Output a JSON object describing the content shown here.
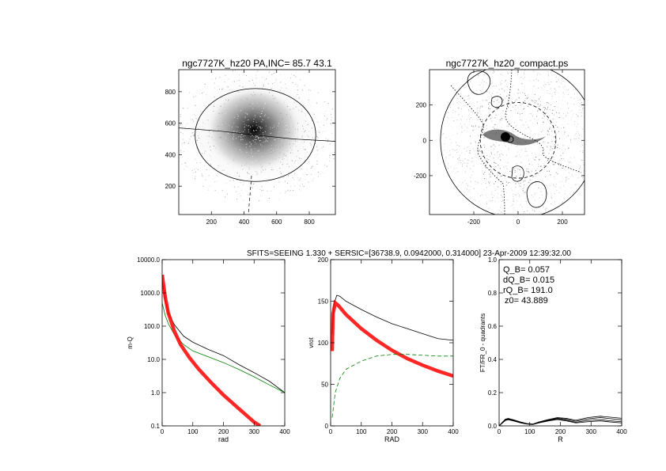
{
  "header": {
    "title_left": "ngc7727K_hz20 PA,INC= 85.7 43.1",
    "title_right": "ngc7727K_hz20_compact.ps",
    "fit_line": "SFITS=SEEING 1.330 + SERSIC=[36738.9, 0.0942000, 0.314000]  23-Apr-2009 12:39:32.00"
  },
  "stats": [
    "Q_B=  0.057",
    "dQ_B=  0.015",
    "rQ_B=  191.0",
    "z0= 43.889"
  ],
  "chart_data": [
    {
      "id": "image-panel",
      "type": "heatmap",
      "title": "ngc7727K_hz20 PA,INC= 85.7 43.1",
      "xlim": [
        0,
        960
      ],
      "ylim": [
        20,
        940
      ],
      "xticks": [
        200,
        400,
        600,
        800
      ],
      "yticks": [
        200,
        400,
        600,
        800
      ],
      "center": [
        470,
        525
      ],
      "ellipse": {
        "cx": 470,
        "cy": 525,
        "rx": 370,
        "ry": 295
      },
      "slit": [
        [
          0,
          570
        ],
        [
          250,
          550
        ],
        [
          470,
          525
        ],
        [
          700,
          500
        ],
        [
          960,
          485
        ]
      ]
    },
    {
      "id": "compact-panel",
      "type": "heatmap",
      "title": "ngc7727K_hz20_compact.ps",
      "xlim": [
        -400,
        300
      ],
      "ylim": [
        -420,
        400
      ],
      "xticks": [
        -200,
        0,
        200
      ],
      "yticks": [
        -200,
        0,
        200
      ],
      "circle_r": 390,
      "dashed_circle_r": 190
    },
    {
      "id": "profile-log",
      "type": "line",
      "xlabel": "rad",
      "ylabel": "m-Q",
      "log_y": true,
      "xlim": [
        0,
        400
      ],
      "ylim": [
        0.1,
        10000
      ],
      "xticks": [
        0,
        100,
        200,
        300,
        400
      ],
      "yticks": [
        0.1,
        1.0,
        10.0,
        100.0,
        1000.0,
        10000.0
      ],
      "ytick_labels": [
        "0.1",
        "1.0",
        "10.0",
        "100.0",
        "1000.0",
        "10000.0"
      ],
      "series": [
        {
          "color": "#000000",
          "points": [
            [
              0,
              2500
            ],
            [
              10,
              600
            ],
            [
              20,
              250
            ],
            [
              40,
              110
            ],
            [
              70,
              50
            ],
            [
              100,
              33
            ],
            [
              150,
              20
            ],
            [
              200,
              13
            ],
            [
              250,
              7
            ],
            [
              300,
              4
            ],
            [
              350,
              2.2
            ],
            [
              400,
              1.0
            ]
          ]
        },
        {
          "color": "#008000",
          "points": [
            [
              0,
              500
            ],
            [
              10,
              210
            ],
            [
              20,
              120
            ],
            [
              40,
              55
            ],
            [
              70,
              28
            ],
            [
              100,
              18
            ],
            [
              150,
              12
            ],
            [
              200,
              8
            ],
            [
              250,
              5
            ],
            [
              300,
              3
            ],
            [
              350,
              1.7
            ],
            [
              400,
              1.0
            ]
          ]
        },
        {
          "color": "#ff0000",
          "points": [
            [
              0,
              3500
            ],
            [
              10,
              750
            ],
            [
              20,
              250
            ],
            [
              40,
              70
            ],
            [
              60,
              28
            ],
            [
              90,
              11
            ],
            [
              120,
              5
            ],
            [
              160,
              2
            ],
            [
              200,
              0.85
            ],
            [
              250,
              0.33
            ],
            [
              300,
              0.13
            ],
            [
              320,
              0.1
            ]
          ]
        }
      ]
    },
    {
      "id": "rotation-curve",
      "type": "line",
      "xlabel": "RAD",
      "ylabel": "vrot",
      "xlim": [
        0,
        400
      ],
      "ylim": [
        0,
        200
      ],
      "xticks": [
        0,
        100,
        200,
        300,
        400
      ],
      "yticks": [
        0,
        50,
        100,
        150,
        200
      ],
      "series": [
        {
          "color": "#000000",
          "points": [
            [
              5,
              110
            ],
            [
              10,
              145
            ],
            [
              20,
              157
            ],
            [
              30,
              156
            ],
            [
              50,
              150
            ],
            [
              100,
              140
            ],
            [
              150,
              131
            ],
            [
              200,
              123
            ],
            [
              250,
              117
            ],
            [
              300,
              111
            ],
            [
              350,
              105
            ],
            [
              400,
              103
            ]
          ]
        },
        {
          "color": "#ff0000",
          "points": [
            [
              5,
              90
            ],
            [
              8,
              135
            ],
            [
              15,
              148
            ],
            [
              25,
              145
            ],
            [
              50,
              134
            ],
            [
              100,
              117
            ],
            [
              150,
              103
            ],
            [
              200,
              91
            ],
            [
              250,
              81
            ],
            [
              300,
              73
            ],
            [
              350,
              66
            ],
            [
              400,
              60
            ]
          ]
        },
        {
          "color": "#008000",
          "dashed": true,
          "points": [
            [
              5,
              10
            ],
            [
              15,
              40
            ],
            [
              30,
              57
            ],
            [
              50,
              68
            ],
            [
              100,
              78
            ],
            [
              150,
              84
            ],
            [
              200,
              86
            ],
            [
              250,
              86
            ],
            [
              300,
              85
            ],
            [
              350,
              84
            ],
            [
              400,
              84
            ]
          ]
        }
      ]
    },
    {
      "id": "fourier-ratio",
      "type": "line",
      "xlabel": "R",
      "ylabel": "FT/FR_0 - quadrants",
      "xlim": [
        0,
        400
      ],
      "ylim": [
        0,
        1.0
      ],
      "xticks": [
        0,
        100,
        200,
        300,
        400
      ],
      "yticks": [
        0,
        0.2,
        0.4,
        0.6,
        0.8,
        1.0
      ],
      "series": [
        {
          "color": "#000000",
          "points": [
            [
              0,
              0
            ],
            [
              10,
              0.02
            ],
            [
              20,
              0.038
            ],
            [
              30,
              0.042
            ],
            [
              50,
              0.032
            ],
            [
              70,
              0.022
            ],
            [
              90,
              0.013
            ],
            [
              110,
              0.01
            ],
            [
              130,
              0.022
            ],
            [
              160,
              0.035
            ],
            [
              190,
              0.046
            ],
            [
              220,
              0.04
            ],
            [
              250,
              0.028
            ],
            [
              290,
              0.042
            ],
            [
              330,
              0.05
            ],
            [
              360,
              0.044
            ],
            [
              400,
              0.036
            ]
          ]
        },
        {
          "color": "#000000",
          "points": [
            [
              0,
              0
            ],
            [
              10,
              0.018
            ],
            [
              20,
              0.035
            ],
            [
              30,
              0.04
            ],
            [
              50,
              0.03
            ],
            [
              70,
              0.02
            ],
            [
              90,
              0.012
            ],
            [
              110,
              0.009
            ],
            [
              130,
              0.02
            ],
            [
              160,
              0.032
            ],
            [
              190,
              0.042
            ],
            [
              220,
              0.034
            ],
            [
              250,
              0.022
            ],
            [
              290,
              0.032
            ],
            [
              330,
              0.038
            ],
            [
              360,
              0.031
            ],
            [
              400,
              0.025
            ]
          ]
        },
        {
          "color": "#000000",
          "points": [
            [
              0,
              0
            ],
            [
              10,
              0.02
            ],
            [
              20,
              0.04
            ],
            [
              30,
              0.045
            ],
            [
              50,
              0.035
            ],
            [
              70,
              0.024
            ],
            [
              90,
              0.014
            ],
            [
              110,
              0.011
            ],
            [
              130,
              0.024
            ],
            [
              160,
              0.038
            ],
            [
              190,
              0.05
            ],
            [
              220,
              0.045
            ],
            [
              250,
              0.034
            ],
            [
              290,
              0.05
            ],
            [
              330,
              0.058
            ],
            [
              360,
              0.053
            ],
            [
              400,
              0.046
            ]
          ]
        },
        {
          "color": "#000000",
          "points": [
            [
              0,
              0
            ],
            [
              10,
              0.016
            ],
            [
              20,
              0.032
            ],
            [
              30,
              0.037
            ],
            [
              50,
              0.028
            ],
            [
              70,
              0.018
            ],
            [
              90,
              0.011
            ],
            [
              110,
              0.008
            ],
            [
              130,
              0.018
            ],
            [
              160,
              0.029
            ],
            [
              190,
              0.038
            ],
            [
              220,
              0.03
            ],
            [
              250,
              0.018
            ],
            [
              290,
              0.025
            ],
            [
              330,
              0.03
            ],
            [
              360,
              0.024
            ],
            [
              400,
              0.018
            ]
          ]
        }
      ]
    }
  ]
}
